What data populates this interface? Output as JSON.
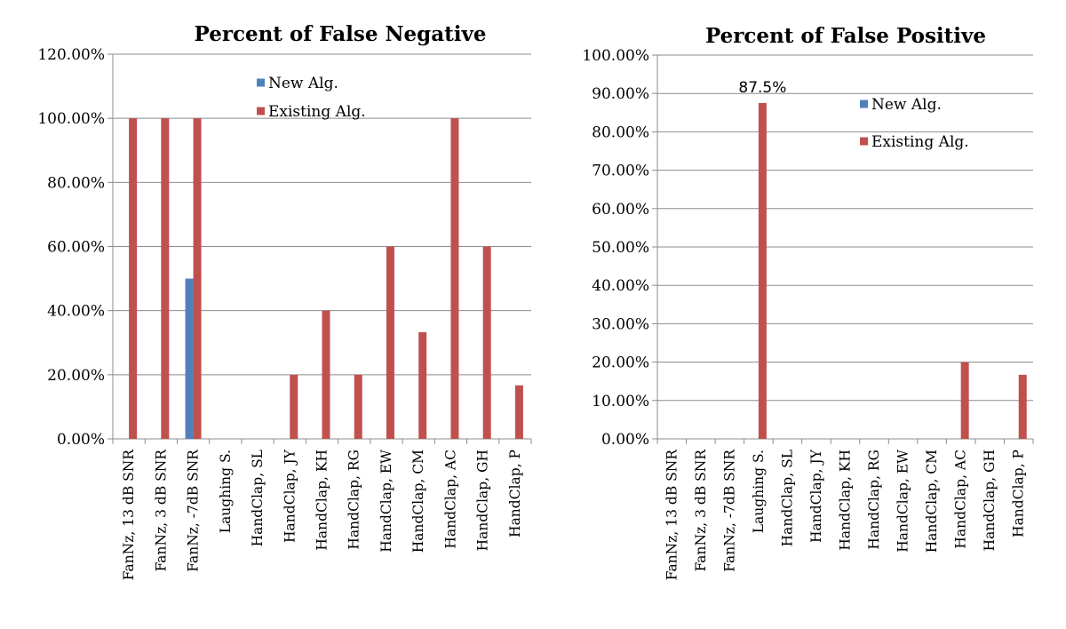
{
  "colors": {
    "new": "#4F81BD",
    "existing": "#C0504D",
    "grid": "#8c8c8c",
    "axis": "#8c8c8c"
  },
  "chart_data": [
    {
      "type": "bar",
      "title": "Percent of False Negative",
      "categories": [
        "FanNz, 13 dB SNR",
        "FanNz, 3 dB SNR",
        "FanNz, -7dB SNR",
        "Laughing S.",
        "HandClap, SL",
        "HandClap, JY",
        "HandClap, KH",
        "HandClap, RG",
        "HandClap, EW",
        "HandClap, CM",
        "HandClap, AC",
        "HandClap, GH",
        "HandClap, P"
      ],
      "series": [
        {
          "name": "New Alg.",
          "values": [
            0,
            0,
            50,
            0,
            0,
            0,
            0,
            0,
            0,
            0,
            0,
            0,
            0
          ]
        },
        {
          "name": "Existing Alg.",
          "values": [
            100,
            100,
            100,
            0,
            0,
            20,
            40,
            20,
            60,
            33.3,
            100,
            60,
            16.7
          ]
        }
      ],
      "ylim": [
        0,
        120
      ],
      "yticks": [
        "0.00%",
        "20.00%",
        "40.00%",
        "60.00%",
        "80.00%",
        "100.00%",
        "120.00%"
      ],
      "grid": true,
      "legend": "top-center",
      "annotations": []
    },
    {
      "type": "bar",
      "title": "Percent of False Positive",
      "categories": [
        "FanNz, 13 dB SNR",
        "FanNz, 3 dB SNR",
        "FanNz, -7dB SNR",
        "Laughing S.",
        "HandClap, SL",
        "HandClap, JY",
        "HandClap, KH",
        "HandClap, RG",
        "HandClap, EW",
        "HandClap, CM",
        "HandClap, AC",
        "HandClap, GH",
        "HandClap, P"
      ],
      "series": [
        {
          "name": "New Alg.",
          "values": [
            0,
            0,
            0,
            0,
            0,
            0,
            0,
            0,
            0,
            0,
            0,
            0,
            0
          ]
        },
        {
          "name": "Existing Alg.",
          "values": [
            0,
            0,
            0,
            87.5,
            0,
            0,
            0,
            0,
            0,
            0,
            20,
            0,
            16.7
          ]
        }
      ],
      "ylim": [
        0,
        100
      ],
      "yticks": [
        "0.00%",
        "10.00%",
        "20.00%",
        "30.00%",
        "40.00%",
        "50.00%",
        "60.00%",
        "70.00%",
        "80.00%",
        "90.00%",
        "100.00%"
      ],
      "grid": true,
      "legend": "top-right",
      "annotations": [
        {
          "category": "Laughing S.",
          "series": "Existing Alg.",
          "text": "87.5%"
        }
      ]
    }
  ]
}
